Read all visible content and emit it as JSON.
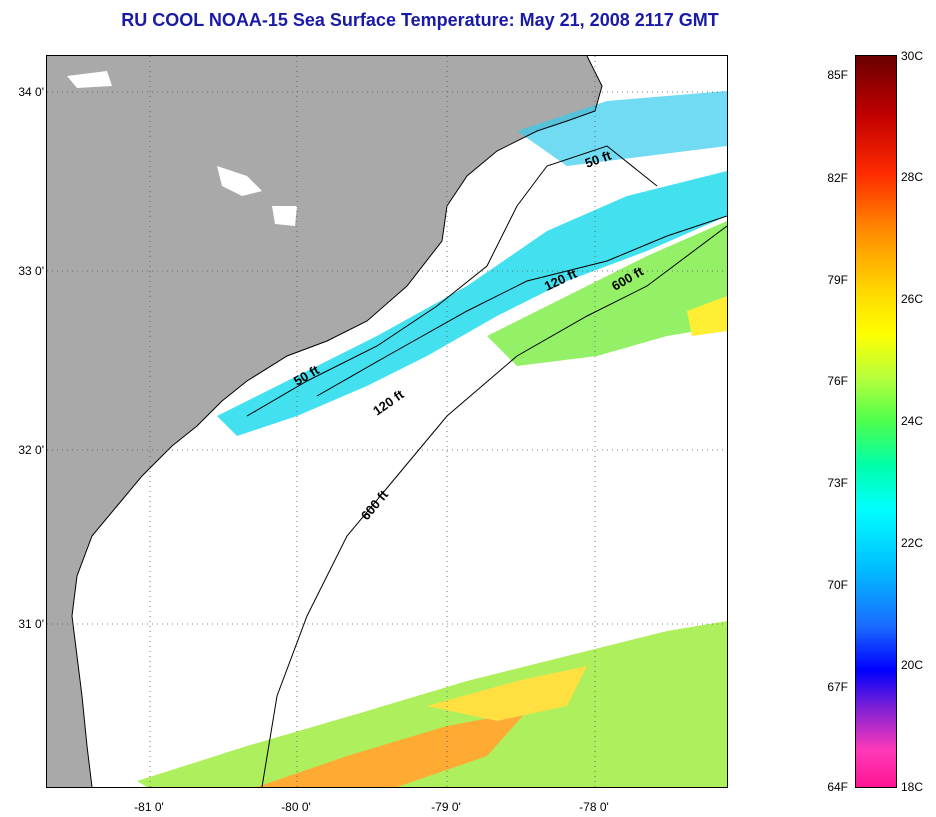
{
  "title": "RU COOL  NOAA-15  Sea Surface Temperature:  May 21, 2008 2117 GMT",
  "lat_labels": [
    "34 0'",
    "33 0'",
    "32 0'",
    "31 0'"
  ],
  "lon_labels": [
    "-81 0'",
    "-80 0'",
    "-79 0'",
    "-78 0'"
  ],
  "contours": [
    "50 ft",
    "120 ft",
    "600 ft",
    "50 ft",
    "120 ft",
    "600 ft"
  ],
  "colorbar": {
    "fahrenheit": [
      "85F",
      "82F",
      "79F",
      "76F",
      "73F",
      "70F",
      "67F",
      "64F"
    ],
    "celsius": [
      "30C",
      "28C",
      "26C",
      "24C",
      "22C",
      "20C",
      "18C"
    ]
  },
  "colors": {
    "land": "#a9a9a9",
    "title": "#1a1aa8"
  }
}
